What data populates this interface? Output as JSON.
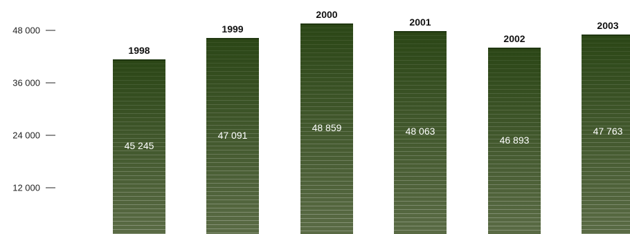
{
  "chart_data": {
    "type": "bar",
    "categories": [
      "1998",
      "1999",
      "2000",
      "2001",
      "2002",
      "2003"
    ],
    "values": [
      45245,
      47091,
      48859,
      48063,
      46893,
      47763
    ],
    "value_labels": [
      "45 245",
      "47 091",
      "48 859",
      "48 063",
      "46 893",
      "47 763"
    ],
    "title": "",
    "xlabel": "",
    "ylabel": "",
    "yticks": [
      12000,
      24000,
      36000,
      48000
    ],
    "ytick_labels": [
      "12 000",
      "24 000",
      "36 000",
      "48 000"
    ],
    "grid": false,
    "legend": "none",
    "bar_color_top": "#2b4616",
    "bar_color_bottom": "#5a6b45",
    "stripe_color": "#ffffff"
  }
}
